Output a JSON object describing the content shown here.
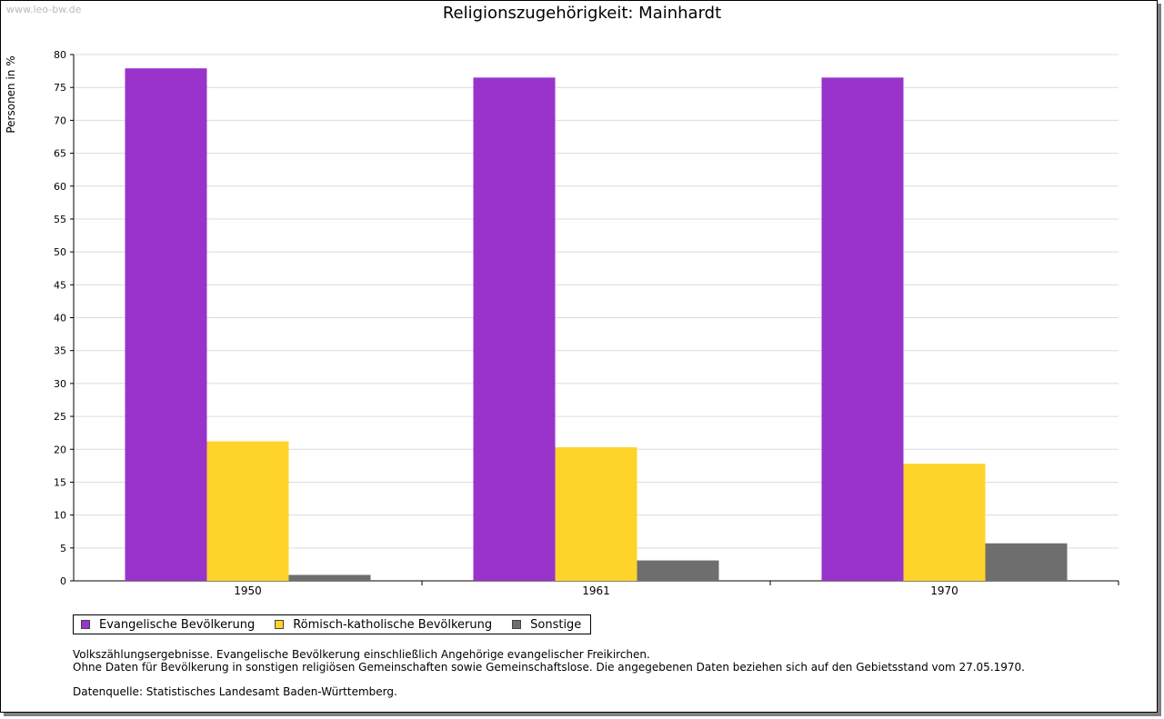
{
  "watermark": "www.leo-bw.de",
  "chart_data": {
    "type": "bar",
    "title": "Religionszugehörigkeit: Mainhardt",
    "xlabel": "",
    "ylabel": "Personen in %",
    "ylim": [
      0,
      80
    ],
    "ytick_step": 5,
    "grid": true,
    "legend_position": "bottom-left",
    "categories": [
      "1950",
      "1961",
      "1970"
    ],
    "series": [
      {
        "name": "Evangelische Bevölkerung",
        "color": "#9933cc",
        "values": [
          77.9,
          76.5,
          76.5
        ]
      },
      {
        "name": "Römisch-katholische Bevölkerung",
        "color": "#ffd42a",
        "values": [
          21.2,
          20.3,
          17.8
        ]
      },
      {
        "name": "Sonstige",
        "color": "#6e6e6e",
        "values": [
          0.9,
          3.1,
          5.7
        ]
      }
    ]
  },
  "notes": {
    "line1": "Volkszählungsergebnisse. Evangelische Bevölkerung einschließlich Angehörige evangelischer Freikirchen.",
    "line2": "Ohne Daten für Bevölkerung in sonstigen religiösen Gemeinschaften sowie Gemeinschaftslose. Die angegebenen Daten beziehen sich auf den Gebietsstand vom 27.05.1970.",
    "source": "Datenquelle: Statistisches Landesamt Baden-Württemberg."
  }
}
